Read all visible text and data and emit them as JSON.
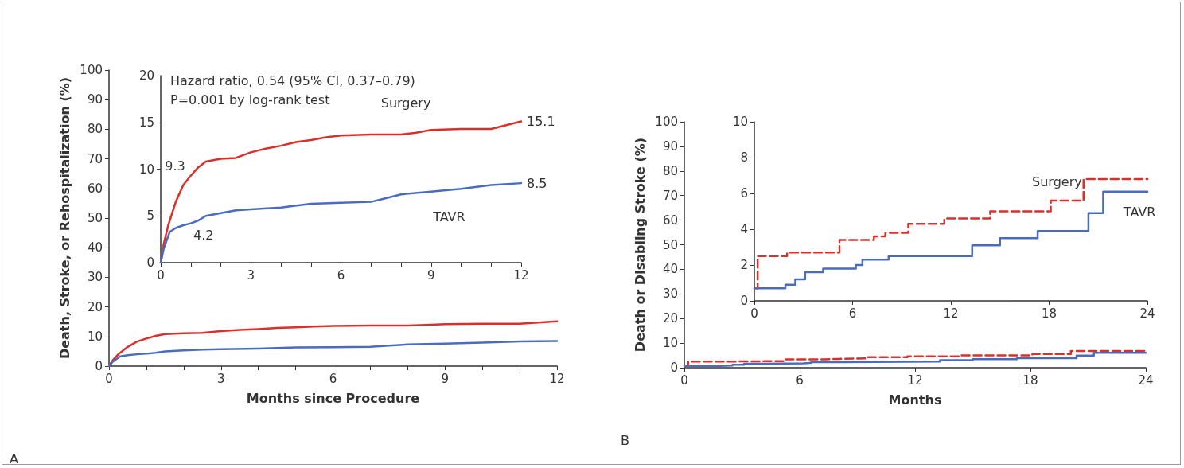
{
  "chart_data": [
    {
      "type": "line",
      "ylabel": "Death, Stroke, or Rehospitalization (%)",
      "xlabel": "Months since Procedure",
      "annotations": [
        "A"
      ],
      "marker": "none",
      "xlim": [
        0,
        12
      ],
      "xticks": [
        0,
        {
          "value": 1,
          "label": null
        },
        {
          "value": 2,
          "label": null
        },
        3,
        {
          "value": 4,
          "label": null
        },
        {
          "value": 5,
          "label": null
        },
        6,
        {
          "value": 7,
          "label": null
        },
        {
          "value": 8,
          "label": null
        },
        9,
        {
          "value": 10,
          "label": null
        },
        {
          "value": 11,
          "label": null
        },
        12
      ],
      "ylim": [
        0,
        100
      ],
      "yticks": [
        0,
        10,
        20,
        30,
        40,
        50,
        60,
        70,
        80,
        90,
        100
      ],
      "series": [
        {
          "color": "#d9302c",
          "x": [
            0,
            0.1,
            0.25,
            0.5,
            0.75,
            1,
            1.25,
            1.5,
            2,
            2.5,
            3,
            3.5,
            4,
            4.5,
            5,
            5.5,
            6,
            7,
            8,
            8.5,
            9,
            10,
            11,
            11.5,
            12
          ],
          "values": [
            0,
            2,
            4,
            6.5,
            8.3,
            9.3,
            10.2,
            10.8,
            11.1,
            11.2,
            11.8,
            12.2,
            12.5,
            12.9,
            13.1,
            13.4,
            13.6,
            13.7,
            13.7,
            13.9,
            14.2,
            14.3,
            14.3,
            14.7,
            15.1
          ]
        },
        {
          "color": "#4a6cc0",
          "x": [
            0,
            0.1,
            0.3,
            0.5,
            0.75,
            1,
            1.25,
            1.5,
            2,
            2.5,
            3,
            4,
            5,
            6,
            7,
            7.5,
            8,
            9,
            10,
            11,
            12
          ],
          "values": [
            0,
            1.5,
            3.3,
            3.7,
            4,
            4.2,
            4.5,
            5,
            5.3,
            5.6,
            5.7,
            5.9,
            6.3,
            6.4,
            6.5,
            6.9,
            7.3,
            7.6,
            7.9,
            8.3,
            8.5
          ]
        }
      ]
    },
    {
      "type": "line",
      "annotations": [
        "Hazard ratio, 0.54 (95% CI, 0.37–0.79)",
        "P=0.001 by log-rank test"
      ],
      "marker": "none",
      "xlim": [
        0,
        12
      ],
      "xticks": [
        0,
        {
          "value": 1,
          "label": null
        },
        {
          "value": 2,
          "label": null
        },
        3,
        {
          "value": 4,
          "label": null
        },
        {
          "value": 5,
          "label": null
        },
        6,
        {
          "value": 7,
          "label": null
        },
        {
          "value": 8,
          "label": null
        },
        9,
        {
          "value": 10,
          "label": null
        },
        {
          "value": 11,
          "label": null
        },
        12
      ],
      "ylim": [
        0,
        20
      ],
      "yticks": [
        0,
        5,
        10,
        15,
        20
      ],
      "series": [
        {
          "name": "Surgery",
          "color": "#d9302c",
          "x": [
            0,
            0.1,
            0.25,
            0.5,
            0.75,
            1,
            1.25,
            1.5,
            2,
            2.5,
            3,
            3.5,
            4,
            4.5,
            5,
            5.5,
            6,
            7,
            8,
            8.5,
            9,
            10,
            11,
            11.5,
            12
          ],
          "values": [
            0,
            2,
            4,
            6.5,
            8.3,
            9.3,
            10.2,
            10.8,
            11.1,
            11.2,
            11.8,
            12.2,
            12.5,
            12.9,
            13.1,
            13.4,
            13.6,
            13.7,
            13.7,
            13.9,
            14.2,
            14.3,
            14.3,
            14.7,
            15.1
          ],
          "value_labels": [
            null,
            null,
            null,
            null,
            null,
            "9.3",
            null,
            null,
            null,
            null,
            null,
            null,
            null,
            null,
            null,
            null,
            null,
            null,
            null,
            null,
            null,
            null,
            null,
            null,
            "15.1"
          ]
        },
        {
          "name": "TAVR",
          "color": "#4a6cc0",
          "x": [
            0,
            0.1,
            0.3,
            0.5,
            0.75,
            1,
            1.25,
            1.5,
            2,
            2.5,
            3,
            4,
            5,
            6,
            7,
            7.5,
            8,
            9,
            10,
            11,
            12
          ],
          "values": [
            0,
            1.5,
            3.3,
            3.7,
            4,
            4.2,
            4.5,
            5,
            5.3,
            5.6,
            5.7,
            5.9,
            6.3,
            6.4,
            6.5,
            6.9,
            7.3,
            7.6,
            7.9,
            8.3,
            8.5
          ],
          "value_labels": [
            null,
            null,
            null,
            null,
            null,
            "4.2",
            null,
            null,
            null,
            null,
            null,
            null,
            null,
            null,
            null,
            null,
            null,
            null,
            null,
            null,
            "8.5"
          ]
        }
      ]
    },
    {
      "type": "step",
      "ylabel": "Death or Disabling Stroke (%)",
      "xlabel": "Months",
      "annotations": [
        "B"
      ],
      "marker": "none",
      "xlim": [
        0,
        24
      ],
      "xticks": [
        0,
        6,
        12,
        18,
        24
      ],
      "ylim": [
        0,
        100
      ],
      "yticks": [
        0,
        10,
        20,
        30,
        40,
        50,
        60,
        70,
        80,
        90,
        100
      ],
      "series": [
        {
          "color": "#d9302c",
          "line_style": "dashed",
          "x": [
            0,
            0.2,
            2,
            5.2,
            7.3,
            8,
            9.4,
            11.6,
            14.4,
            18.1,
            20.1,
            24
          ],
          "values": [
            0.7,
            2.5,
            2.7,
            3.4,
            3.6,
            3.8,
            4.3,
            4.6,
            5,
            5.6,
            6.8,
            6.8
          ]
        },
        {
          "color": "#4a6cc0",
          "line_style": "solid",
          "x": [
            0,
            1.9,
            2.5,
            3.1,
            4.2,
            6.2,
            6.6,
            8.2,
            13.3,
            15,
            17.3,
            20.4,
            21.3,
            24
          ],
          "values": [
            0.7,
            0.9,
            1.2,
            1.6,
            1.8,
            2,
            2.3,
            2.5,
            3.1,
            3.5,
            3.9,
            4.9,
            6.1,
            6.1
          ]
        }
      ]
    },
    {
      "type": "step",
      "marker": "none",
      "xlim": [
        0,
        24
      ],
      "xticks": [
        0,
        6,
        12,
        18,
        24
      ],
      "ylim": [
        0,
        10
      ],
      "yticks": [
        0,
        2,
        4,
        6,
        8,
        10
      ],
      "series": [
        {
          "name": "Surgery",
          "color": "#d9302c",
          "line_style": "dashed",
          "x": [
            0,
            0.2,
            2,
            5.2,
            7.3,
            8,
            9.4,
            11.6,
            14.4,
            18.1,
            20.1,
            24
          ],
          "values": [
            0.7,
            2.5,
            2.7,
            3.4,
            3.6,
            3.8,
            4.3,
            4.6,
            5,
            5.6,
            6.8,
            6.8
          ]
        },
        {
          "name": "TAVR",
          "color": "#4a6cc0",
          "line_style": "solid",
          "x": [
            0,
            1.9,
            2.5,
            3.1,
            4.2,
            6.2,
            6.6,
            8.2,
            13.3,
            15,
            17.3,
            20.4,
            21.3,
            24
          ],
          "values": [
            0.7,
            0.9,
            1.2,
            1.6,
            1.8,
            2,
            2.3,
            2.5,
            3.1,
            3.5,
            3.9,
            4.9,
            6.1,
            6.1
          ]
        }
      ]
    }
  ]
}
